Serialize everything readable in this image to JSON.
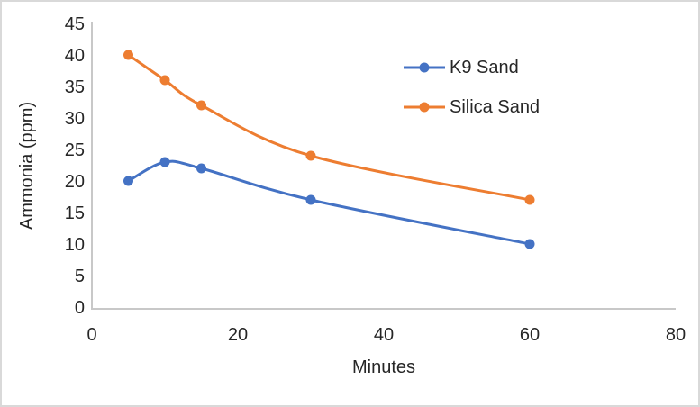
{
  "chart_data": {
    "type": "line",
    "title": "",
    "xlabel": "Minutes",
    "ylabel": "Ammonia (ppm)",
    "x": [
      5,
      10,
      15,
      30,
      60
    ],
    "series": [
      {
        "name": "K9 Sand",
        "color": "#4472C4",
        "values": [
          20,
          23,
          22,
          17,
          10
        ]
      },
      {
        "name": "Silica Sand",
        "color": "#ED7D31",
        "values": [
          40,
          36,
          32,
          24,
          17
        ]
      }
    ],
    "xlim": [
      0,
      80
    ],
    "ylim": [
      0,
      45
    ],
    "x_ticks": [
      0,
      20,
      40,
      60,
      80
    ],
    "y_ticks": [
      0,
      5,
      10,
      15,
      20,
      25,
      30,
      35,
      40,
      45
    ],
    "grid": false,
    "legend_position": "inside-top-right",
    "smooth_lines": true
  },
  "styles": {
    "axis_line_color": "#C8C8C8",
    "text_color": "#262626",
    "frame_border_color": "#D9D9D9",
    "background_color": "#FFFFFF"
  }
}
